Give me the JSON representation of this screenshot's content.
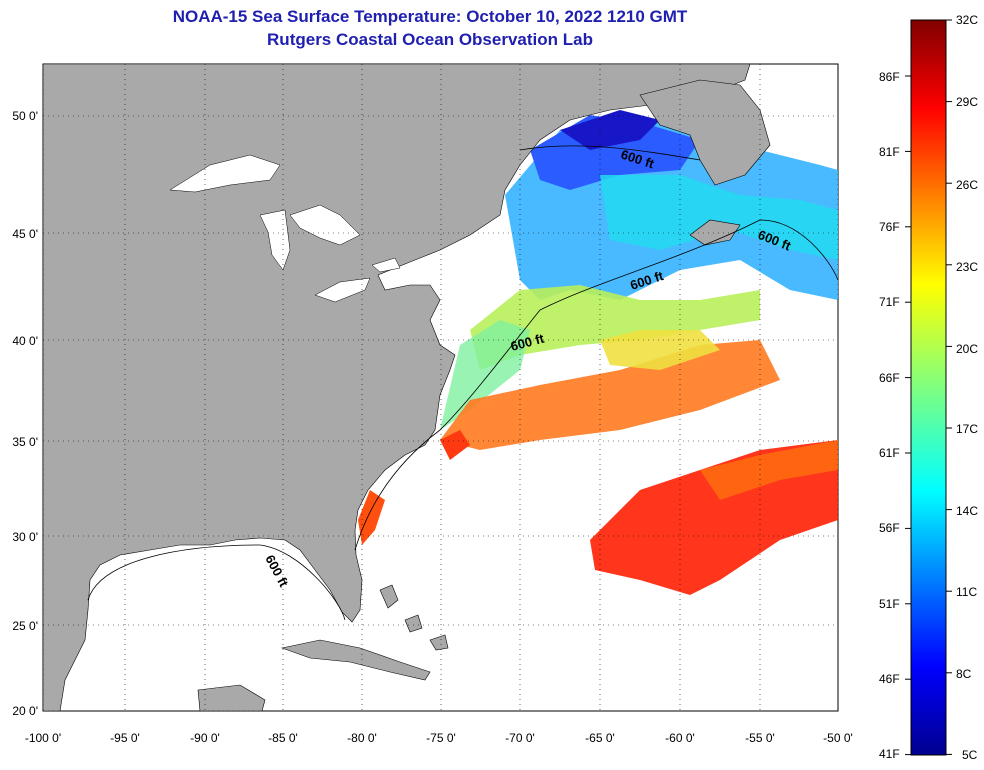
{
  "header": {
    "title": "NOAA-15 Sea Surface Temperature:  October 10, 2022 1210 GMT",
    "subtitle": "Rutgers Coastal Ocean Observation Lab"
  },
  "map": {
    "lat_labels": [
      "50 0'",
      "45 0'",
      "40 0'",
      "35 0'",
      "30 0'",
      "25 0'",
      "20 0'"
    ],
    "lon_labels": [
      "-100 0'",
      "-95 0'",
      "-90 0'",
      "-85 0'",
      "-80 0'",
      "-75 0'",
      "-70 0'",
      "-65 0'",
      "-60 0'",
      "-55 0'",
      "-50 0'"
    ],
    "isobath_labels": [
      "600 ft",
      "600 ft",
      "600 ft",
      "600 ft",
      "600 ft"
    ],
    "colors": {
      "land": "#a9a9a9",
      "nodata": "#ffffff",
      "title": "#1f1fb0"
    }
  },
  "colorbar": {
    "fahrenheit_labels": [
      "86F",
      "81F",
      "76F",
      "71F",
      "66F",
      "61F",
      "56F",
      "51F",
      "46F",
      "41F"
    ],
    "celsius_labels": [
      "32C",
      "29C",
      "26C",
      "23C",
      "20C",
      "17C",
      "14C",
      "11C",
      "8C",
      "5C"
    ]
  }
}
